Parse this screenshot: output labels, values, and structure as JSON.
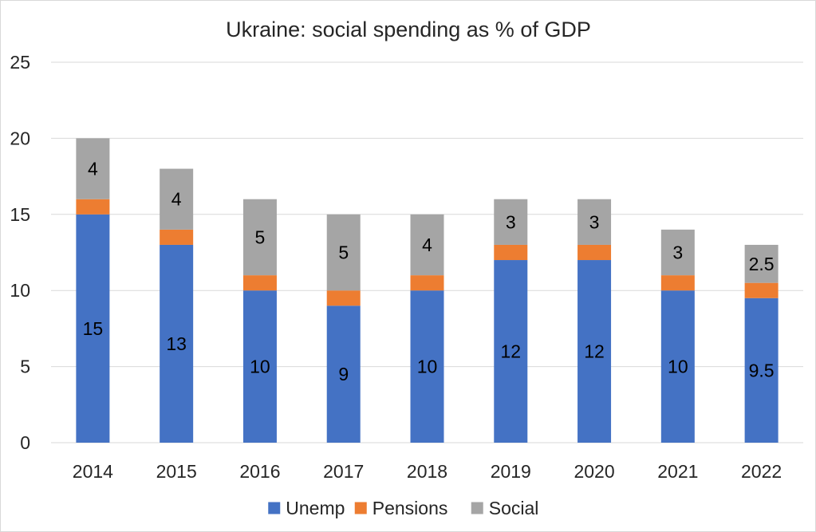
{
  "chart_data": {
    "type": "bar",
    "stacked": true,
    "title": "Ukraine: social spending as % of GDP",
    "xlabel": "",
    "ylabel": "",
    "categories": [
      "2014",
      "2015",
      "2016",
      "2017",
      "2018",
      "2019",
      "2020",
      "2021",
      "2022"
    ],
    "series": [
      {
        "name": "Unemp",
        "color": "#4472c4",
        "values": [
          15,
          13,
          10,
          9,
          10,
          12,
          12,
          10,
          9.5
        ],
        "labels": [
          "15",
          "13",
          "10",
          "9",
          "10",
          "12",
          "12",
          "10",
          "9.5"
        ]
      },
      {
        "name": "Pensions",
        "color": "#ed7d31",
        "values": [
          1,
          1,
          1,
          1,
          1,
          1,
          1,
          1,
          1
        ],
        "labels": []
      },
      {
        "name": "Social",
        "color": "#a5a5a5",
        "values": [
          4,
          4,
          5,
          5,
          4,
          3,
          3,
          3,
          2.5
        ],
        "labels": [
          "4",
          "4",
          "5",
          "5",
          "4",
          "3",
          "3",
          "3",
          "2.5"
        ]
      }
    ],
    "ylim": [
      0,
      25
    ],
    "yticks": [
      0,
      5,
      10,
      15,
      20,
      25
    ],
    "grid": true,
    "gridColor": "#d9d9d9",
    "legend": "bottom"
  }
}
